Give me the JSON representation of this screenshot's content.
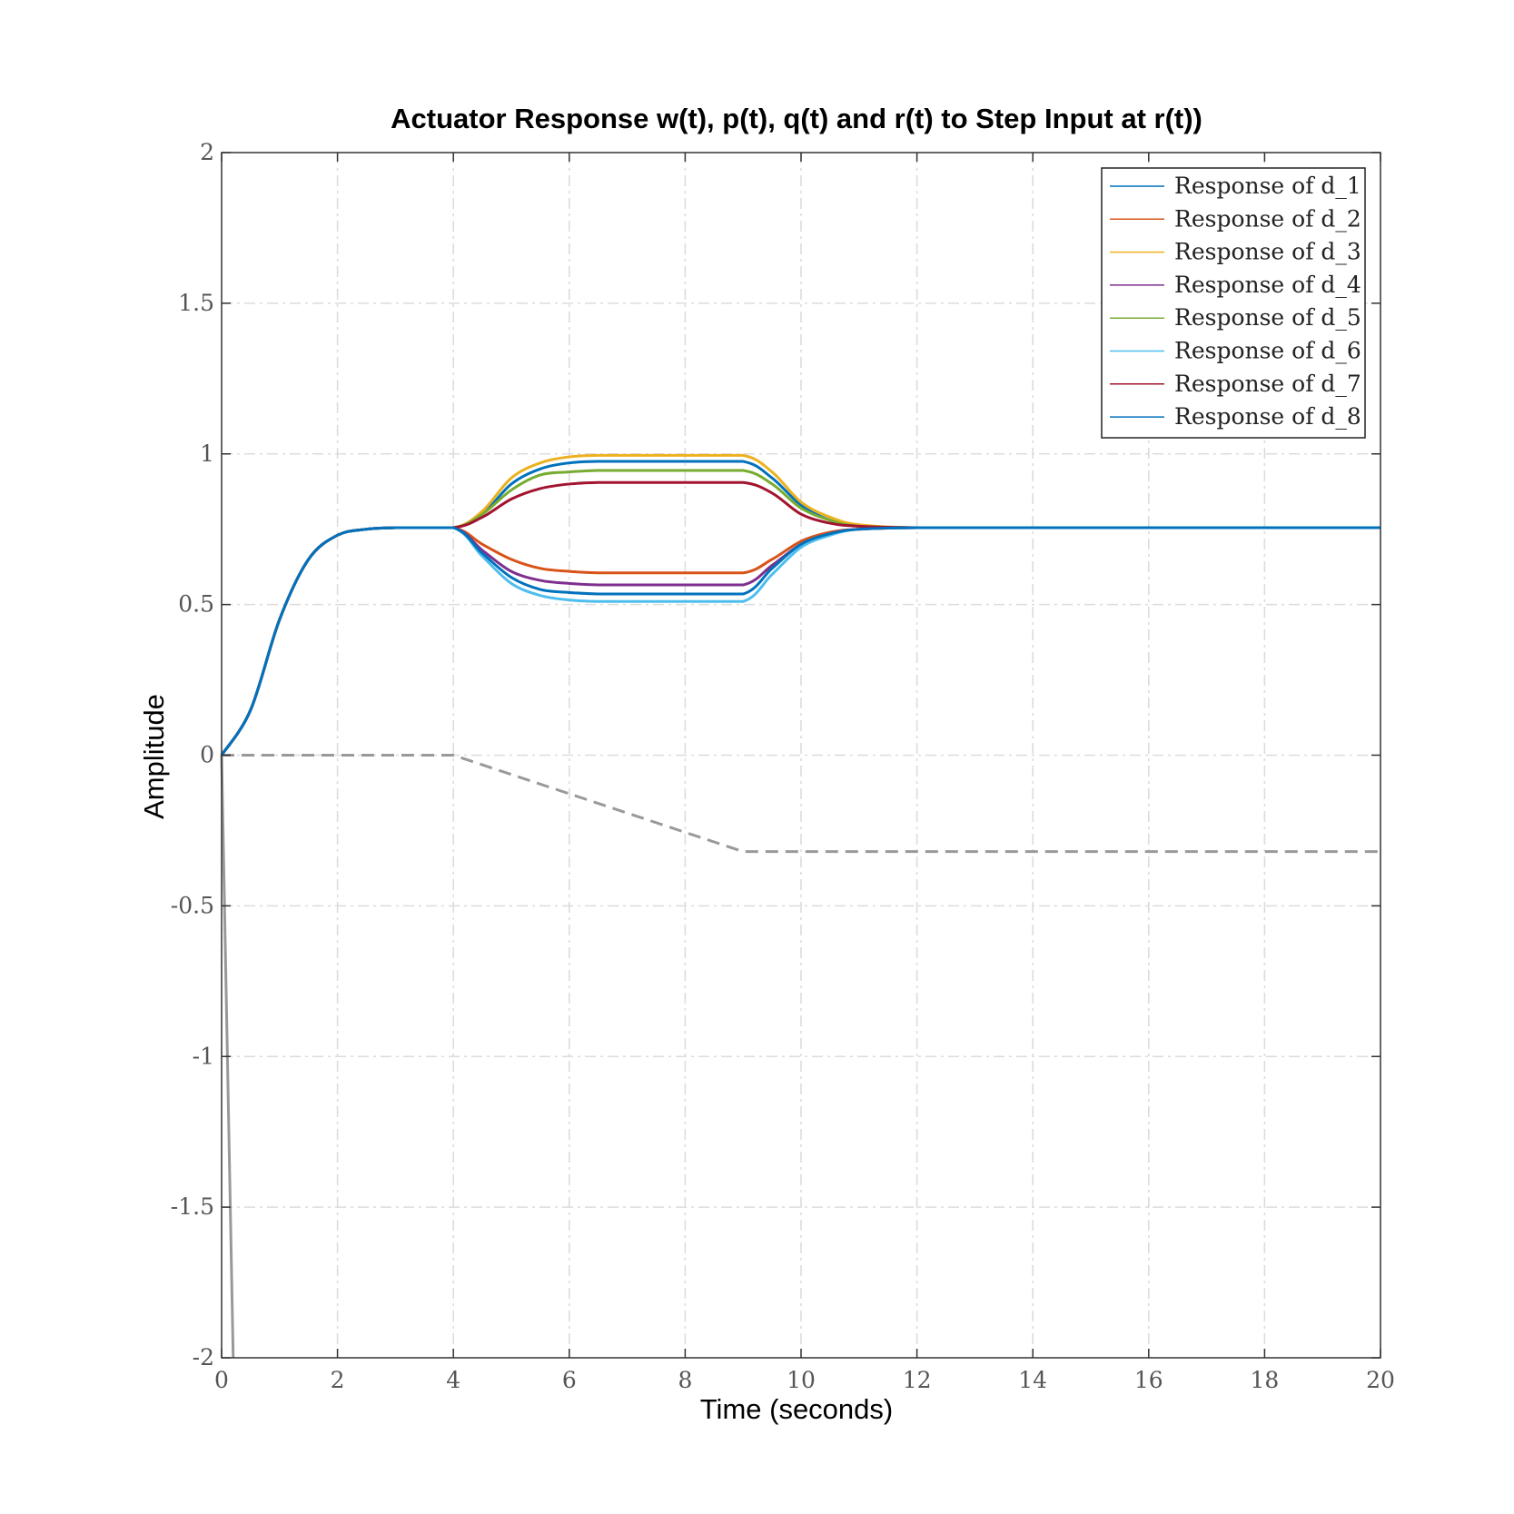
{
  "chart_data": {
    "type": "line",
    "title": "Actuator Response w(t), p(t), q(t) and r(t) to Step Input at r(t))",
    "xlabel": "Time (seconds)",
    "ylabel": "Amplitude",
    "xlim": [
      0,
      20
    ],
    "ylim": [
      -2,
      2
    ],
    "xticks": [
      0,
      2,
      4,
      6,
      8,
      10,
      12,
      14,
      16,
      18,
      20
    ],
    "xtick_labels": [
      "0",
      "2",
      "4",
      "6",
      "8",
      "10",
      "12",
      "14",
      "16",
      "18",
      "20"
    ],
    "yticks": [
      2,
      1.5,
      1,
      0.5,
      0,
      -0.5,
      -1,
      -1.5,
      -2
    ],
    "ytick_labels": [
      "2",
      "1.5",
      "1",
      "0.5",
      "0",
      "-0.5",
      "-1",
      "-1.5",
      "-2"
    ],
    "grid": true,
    "legend_position": "top-right",
    "x": [
      0,
      0.5,
      1,
      1.5,
      2,
      2.5,
      3,
      4,
      4.5,
      5,
      5.5,
      6,
      6.5,
      7,
      8,
      9,
      9.5,
      10,
      10.5,
      11,
      12,
      14,
      16,
      18,
      20
    ],
    "series": [
      {
        "name": "Response of d_1",
        "color": "#0072bd",
        "values": [
          0,
          0.15,
          0.45,
          0.65,
          0.73,
          0.75,
          0.755,
          0.755,
          0.8,
          0.9,
          0.95,
          0.97,
          0.975,
          0.975,
          0.975,
          0.975,
          0.92,
          0.83,
          0.78,
          0.76,
          0.755,
          0.755,
          0.755,
          0.755,
          0.755
        ]
      },
      {
        "name": "Response of d_2",
        "color": "#d95319",
        "values": [
          0,
          0.15,
          0.45,
          0.65,
          0.73,
          0.75,
          0.755,
          0.755,
          0.7,
          0.65,
          0.62,
          0.61,
          0.605,
          0.605,
          0.605,
          0.605,
          0.65,
          0.71,
          0.74,
          0.75,
          0.755,
          0.755,
          0.755,
          0.755,
          0.755
        ]
      },
      {
        "name": "Response of d_3",
        "color": "#edb120",
        "values": [
          0,
          0.15,
          0.45,
          0.65,
          0.73,
          0.75,
          0.755,
          0.755,
          0.81,
          0.92,
          0.97,
          0.99,
          0.995,
          0.995,
          0.995,
          0.995,
          0.94,
          0.84,
          0.79,
          0.765,
          0.755,
          0.755,
          0.755,
          0.755,
          0.755
        ]
      },
      {
        "name": "Response of d_4",
        "color": "#7e2f8e",
        "values": [
          0,
          0.15,
          0.45,
          0.65,
          0.73,
          0.75,
          0.755,
          0.755,
          0.68,
          0.61,
          0.58,
          0.57,
          0.565,
          0.565,
          0.565,
          0.565,
          0.63,
          0.7,
          0.735,
          0.75,
          0.755,
          0.755,
          0.755,
          0.755,
          0.755
        ]
      },
      {
        "name": "Response of d_5",
        "color": "#77ac30",
        "values": [
          0,
          0.15,
          0.45,
          0.65,
          0.73,
          0.75,
          0.755,
          0.755,
          0.8,
          0.88,
          0.93,
          0.94,
          0.945,
          0.945,
          0.945,
          0.945,
          0.9,
          0.82,
          0.78,
          0.76,
          0.755,
          0.755,
          0.755,
          0.755,
          0.755
        ]
      },
      {
        "name": "Response of d_6",
        "color": "#4dbeee",
        "values": [
          0,
          0.15,
          0.45,
          0.65,
          0.73,
          0.75,
          0.755,
          0.755,
          0.66,
          0.57,
          0.53,
          0.515,
          0.51,
          0.51,
          0.51,
          0.51,
          0.6,
          0.69,
          0.73,
          0.75,
          0.755,
          0.755,
          0.755,
          0.755,
          0.755
        ]
      },
      {
        "name": "Response of d_7",
        "color": "#a2142f",
        "values": [
          0,
          0.15,
          0.45,
          0.65,
          0.73,
          0.75,
          0.755,
          0.755,
          0.79,
          0.85,
          0.885,
          0.9,
          0.905,
          0.905,
          0.905,
          0.905,
          0.87,
          0.8,
          0.77,
          0.76,
          0.755,
          0.755,
          0.755,
          0.755,
          0.755
        ]
      },
      {
        "name": "Response of d_8",
        "color": "#0072bd",
        "values": [
          0,
          0.15,
          0.45,
          0.65,
          0.73,
          0.75,
          0.755,
          0.755,
          0.67,
          0.59,
          0.55,
          0.54,
          0.535,
          0.535,
          0.535,
          0.535,
          0.62,
          0.7,
          0.735,
          0.75,
          0.755,
          0.755,
          0.755,
          0.755,
          0.755
        ]
      }
    ],
    "reference_lines": [
      {
        "style": "dashed",
        "color": "#999999",
        "x": [
          0,
          4,
          9,
          20
        ],
        "y": [
          0,
          0,
          -0.32,
          -0.32
        ]
      },
      {
        "style": "solid",
        "color": "#999999",
        "x": [
          0,
          0.2
        ],
        "y": [
          0,
          -2
        ]
      }
    ]
  }
}
